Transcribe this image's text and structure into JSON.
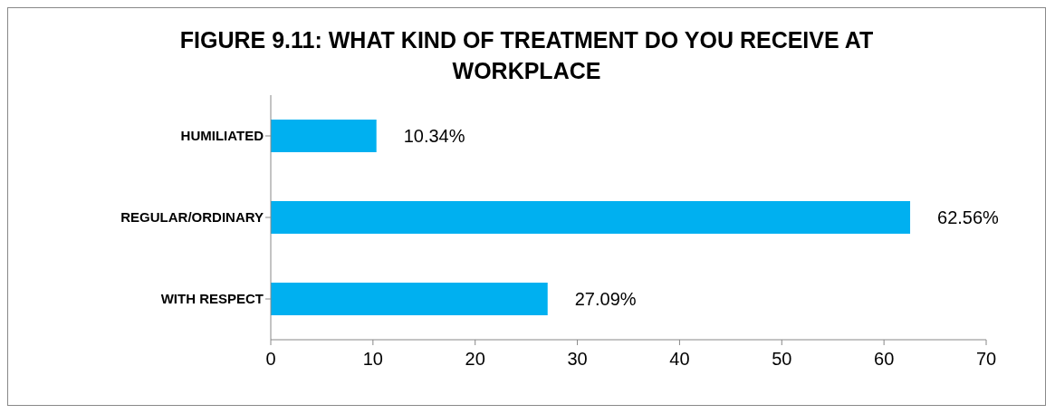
{
  "chart_data": {
    "type": "bar",
    "orientation": "horizontal",
    "title": "FIGURE 9.11: WHAT KIND OF TREATMENT DO YOU RECEIVE AT WORKPLACE",
    "categories": [
      "HUMILIATED",
      "REGULAR/ORDINARY",
      "WITH RESPECT"
    ],
    "values": [
      10.34,
      62.56,
      27.09
    ],
    "value_labels": [
      "10.34%",
      "62.56%",
      "27.09%"
    ],
    "color": "#00b0f0",
    "xlim": [
      0,
      70
    ],
    "xticks": [
      0,
      10,
      20,
      30,
      40,
      50,
      60,
      70
    ],
    "grid": false
  }
}
